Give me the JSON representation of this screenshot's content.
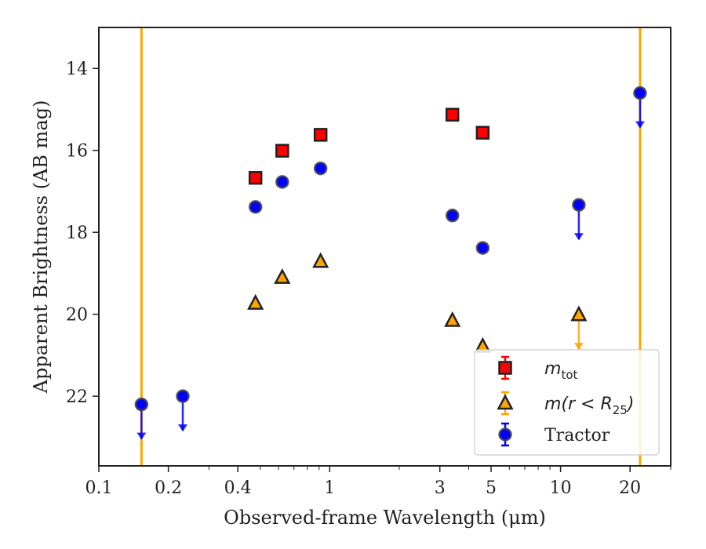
{
  "chart_data": {
    "type": "scatter",
    "xlabel": "Observed-frame Wavelength (μm)",
    "ylabel": "Apparent Brightness (AB mag)",
    "xscale": "log",
    "xlim": [
      0.1,
      30
    ],
    "ylim": [
      23.7,
      13.0
    ],
    "y_inverted": true,
    "x_ticks": [
      0.1,
      0.2,
      0.4,
      1,
      3,
      5,
      10,
      20
    ],
    "x_tick_labels": [
      "0.1",
      "0.2",
      "0.4",
      "1",
      "3",
      "5",
      "10",
      "20"
    ],
    "y_ticks": [
      14,
      16,
      18,
      20,
      22
    ],
    "y_tick_labels": [
      "14",
      "16",
      "18",
      "20",
      "22"
    ],
    "grid": false,
    "legend_position": "bottom-right",
    "vertical_lines": [
      {
        "x": 0.153,
        "color": "#ffa500"
      },
      {
        "x": 22.1,
        "color": "#ffa500"
      }
    ],
    "series": [
      {
        "name": "m_tot",
        "legend_label": "m",
        "legend_subscript": "tot",
        "marker": "square",
        "color": "#ff0000",
        "points": [
          {
            "x": 0.477,
            "y": 16.67
          },
          {
            "x": 0.623,
            "y": 16.01
          },
          {
            "x": 0.913,
            "y": 15.62
          },
          {
            "x": 3.4,
            "y": 15.13
          },
          {
            "x": 4.6,
            "y": 15.57
          }
        ]
      },
      {
        "name": "m(r < R25)",
        "legend_label": "m(r < R",
        "legend_subscript": "25",
        "legend_suffix": ")",
        "marker": "triangle",
        "color": "#ffa500",
        "points": [
          {
            "x": 0.477,
            "y": 19.73
          },
          {
            "x": 0.623,
            "y": 19.1
          },
          {
            "x": 0.913,
            "y": 18.71
          },
          {
            "x": 3.4,
            "y": 20.15
          },
          {
            "x": 4.6,
            "y": 20.78
          },
          {
            "x": 12.0,
            "y": 20.01,
            "upper_limit": true
          }
        ]
      },
      {
        "name": "Tractor",
        "legend_label": "Tractor",
        "marker": "circle",
        "color": "#0000ff",
        "points": [
          {
            "x": 0.153,
            "y": 22.2,
            "upper_limit": true
          },
          {
            "x": 0.231,
            "y": 22.0,
            "upper_limit": true
          },
          {
            "x": 0.477,
            "y": 17.38
          },
          {
            "x": 0.623,
            "y": 16.77
          },
          {
            "x": 0.913,
            "y": 16.44
          },
          {
            "x": 3.4,
            "y": 17.59
          },
          {
            "x": 4.6,
            "y": 18.38
          },
          {
            "x": 12.0,
            "y": 17.33,
            "upper_limit": true
          },
          {
            "x": 22.1,
            "y": 14.6,
            "upper_limit": true
          }
        ]
      }
    ]
  }
}
